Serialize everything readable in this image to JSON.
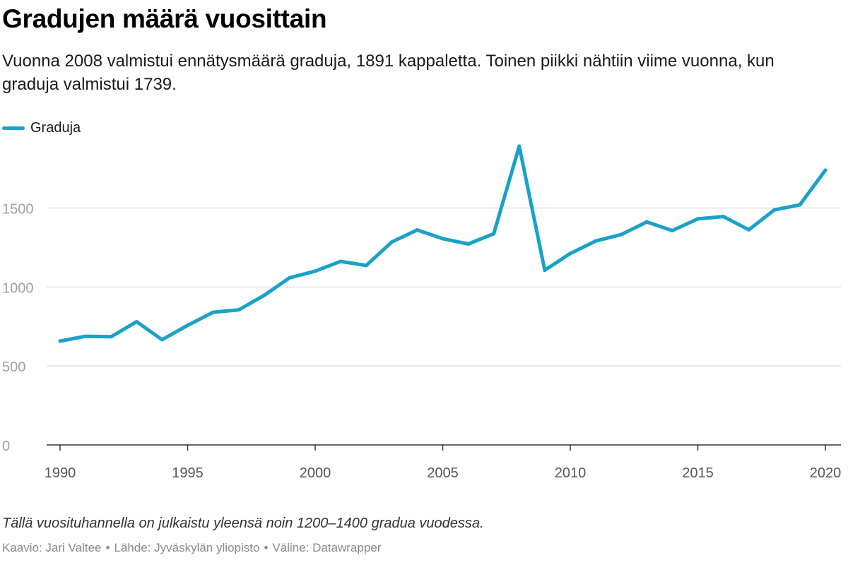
{
  "header": {
    "title": "Gradujen määrä vuosittain",
    "subtitle": "Vuonna 2008 valmistui ennätysmäärä graduja, 1891 kappaletta. Toinen piikki nähtiin viime vuonna, kun graduja valmistui 1739."
  },
  "footer": {
    "notes": "Tällä vuosituhannella on julkaistu yleensä noin 1200–1400 gradua vuodessa.",
    "credit": "Kaavio: Jari Valtee",
    "source": "Lähde: Jyväskylän yliopisto",
    "tool": "Väline: Datawrapper",
    "separator": "•"
  },
  "colors": {
    "series": "#1aa1c9",
    "grid": "#e0e0e0",
    "axis": "#333333",
    "tick_label": "#a0a0a0",
    "x_tick_label": "#555555"
  },
  "chart_data": {
    "type": "line",
    "title": "Gradujen määrä vuosittain",
    "xlabel": "",
    "ylabel": "",
    "xlim": [
      1990,
      2020
    ],
    "ylim": [
      0,
      1900
    ],
    "y_ticks": [
      0,
      500,
      1000,
      1500
    ],
    "x_ticks": [
      1990,
      1995,
      2000,
      2005,
      2010,
      2015,
      2020
    ],
    "grid": true,
    "legend": "top-left",
    "x": [
      1990,
      1991,
      1992,
      1993,
      1994,
      1995,
      1996,
      1997,
      1998,
      1999,
      2000,
      2001,
      2002,
      2003,
      2004,
      2005,
      2006,
      2007,
      2008,
      2009,
      2010,
      2011,
      2012,
      2013,
      2014,
      2015,
      2016,
      2017,
      2018,
      2019,
      2020
    ],
    "series": [
      {
        "name": "Graduja",
        "values": [
          657,
          688,
          685,
          780,
          666,
          757,
          840,
          855,
          947,
          1058,
          1100,
          1162,
          1136,
          1284,
          1361,
          1306,
          1272,
          1337,
          1891,
          1106,
          1212,
          1291,
          1332,
          1412,
          1357,
          1431,
          1446,
          1362,
          1488,
          1520,
          1739
        ]
      }
    ]
  }
}
